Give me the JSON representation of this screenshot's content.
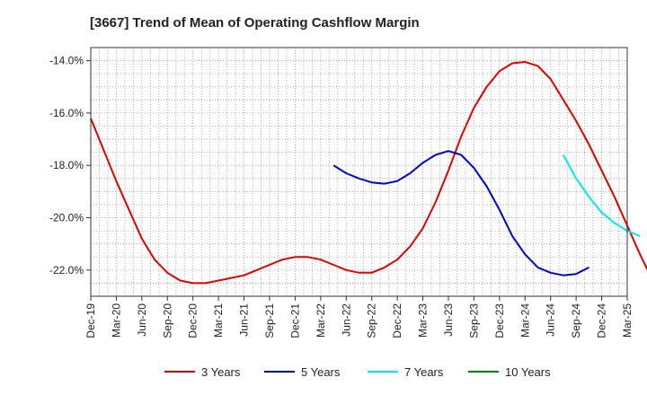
{
  "chart_data": {
    "type": "line",
    "title": "[3667]  Trend of Mean of Operating Cashflow Margin",
    "xlabel": "",
    "ylabel": "",
    "ylim": [
      -23.0,
      -13.5
    ],
    "y_ticks": [
      -14.0,
      -16.0,
      -18.0,
      -20.0,
      -22.0
    ],
    "y_tick_labels": [
      "-14.0%",
      "-16.0%",
      "-18.0%",
      "-20.0%",
      "-22.0%"
    ],
    "x_tick_labels": [
      "Dec-19",
      "Mar-20",
      "Jun-20",
      "Sep-20",
      "Dec-20",
      "Mar-21",
      "Jun-21",
      "Sep-21",
      "Dec-21",
      "Mar-22",
      "Jun-22",
      "Sep-22",
      "Dec-22",
      "Mar-23",
      "Jun-23",
      "Sep-23",
      "Dec-23",
      "Mar-24",
      "Jun-24",
      "Sep-24",
      "Dec-24",
      "Mar-25"
    ],
    "grid": true,
    "legend_position": "bottom",
    "series": [
      {
        "name": "3 Years",
        "color": "#dd0000",
        "values": [
          -16.2,
          -17.4,
          -18.6,
          -19.7,
          -20.8,
          -21.6,
          -22.1,
          -22.4,
          -22.5,
          -22.5,
          -22.4,
          -22.3,
          -22.2,
          -22.0,
          -21.8,
          -21.6,
          -21.5,
          -21.5,
          -21.6,
          -21.8,
          -22.0,
          -22.1,
          -22.1,
          -21.9,
          -21.6,
          -21.1,
          -20.4,
          -19.4,
          -18.2,
          -16.9,
          -15.8,
          -15.0,
          -14.4,
          -14.1,
          -14.05,
          -14.2,
          -14.7,
          -15.5,
          -16.3,
          -17.2,
          -18.2,
          -19.2,
          -20.3,
          -21.4,
          -22.4
        ]
      },
      {
        "name": "5 Years",
        "color": "#0000cc",
        "values": [
          null,
          null,
          null,
          null,
          null,
          null,
          null,
          null,
          null,
          null,
          null,
          null,
          null,
          null,
          null,
          null,
          null,
          null,
          null,
          -18.0,
          -18.3,
          -18.5,
          -18.65,
          -18.7,
          -18.6,
          -18.3,
          -17.9,
          -17.6,
          -17.45,
          -17.6,
          -18.1,
          -18.8,
          -19.7,
          -20.7,
          -21.4,
          -21.9,
          -22.1,
          -22.2,
          -22.15,
          -21.9
        ]
      },
      {
        "name": "7 Years",
        "color": "#00e5ee",
        "values": [
          null,
          null,
          null,
          null,
          null,
          null,
          null,
          null,
          null,
          null,
          null,
          null,
          null,
          null,
          null,
          null,
          null,
          null,
          null,
          null,
          null,
          null,
          null,
          null,
          null,
          null,
          null,
          null,
          null,
          null,
          null,
          null,
          null,
          null,
          null,
          null,
          null,
          -17.6,
          -18.5,
          -19.2,
          -19.8,
          -20.2,
          -20.5,
          -20.7
        ]
      },
      {
        "name": "10 Years",
        "color": "#008800",
        "values": []
      }
    ]
  }
}
